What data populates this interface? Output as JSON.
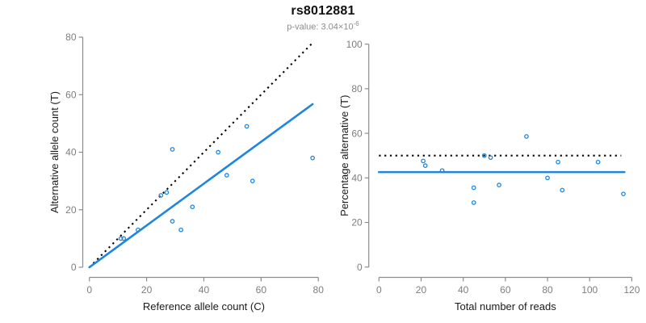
{
  "header": {
    "title": "rs8012881",
    "subtitle_main": "p-value: 3.04×10",
    "subtitle_exponent": "-6"
  },
  "colors": {
    "accent_blue": "#1E87DD",
    "line_black": "#000000",
    "axis_gray": "#8C8C8C",
    "tick_text_gray": "#7E7E7E",
    "label_dark": "#1A1A1A",
    "title_black": "#111111",
    "subtitle_gray": "#8C8C8C"
  },
  "chart_data": [
    {
      "name": "ref-vs-alt-counts",
      "type": "scatter",
      "title": "",
      "xlabel": "Reference allele count (C)",
      "ylabel": "Alternative allele count (T)",
      "xlim": [
        0,
        80
      ],
      "ylim": [
        0,
        80
      ],
      "xticks": [
        0,
        20,
        40,
        60,
        80
      ],
      "yticks": [
        0,
        20,
        40,
        60,
        80
      ],
      "grid": false,
      "legend": null,
      "points": [
        [
          11,
          10
        ],
        [
          12,
          10
        ],
        [
          17,
          13
        ],
        [
          25,
          25
        ],
        [
          27,
          26
        ],
        [
          29,
          16
        ],
        [
          29,
          41
        ],
        [
          32,
          13
        ],
        [
          36,
          21
        ],
        [
          45,
          40
        ],
        [
          48,
          32
        ],
        [
          55,
          49
        ],
        [
          57,
          30
        ],
        [
          78,
          38
        ]
      ],
      "lines": [
        {
          "name": "identity-line",
          "style": "dotted",
          "color": "#000000",
          "x": [
            0,
            78
          ],
          "y": [
            0,
            78
          ]
        },
        {
          "name": "fit-line",
          "style": "solid",
          "color": "#1E87DD",
          "x": [
            0,
            78
          ],
          "y": [
            0,
            56.7
          ]
        }
      ]
    },
    {
      "name": "reads-vs-percentage",
      "type": "scatter",
      "title": "",
      "xlabel": "Total number of reads",
      "ylabel": "Percentage alternative (T)",
      "xlim": [
        0,
        120
      ],
      "ylim": [
        0,
        100
      ],
      "xticks": [
        0,
        20,
        40,
        60,
        80,
        100,
        120
      ],
      "yticks": [
        0,
        20,
        40,
        60,
        80,
        100
      ],
      "grid": false,
      "legend": null,
      "points": [
        [
          21,
          47.6
        ],
        [
          22,
          45.5
        ],
        [
          30,
          43.3
        ],
        [
          45,
          28.9
        ],
        [
          45,
          35.6
        ],
        [
          50,
          50.0
        ],
        [
          53,
          49.1
        ],
        [
          57,
          36.8
        ],
        [
          70,
          58.6
        ],
        [
          80,
          40.0
        ],
        [
          85,
          47.1
        ],
        [
          87,
          34.5
        ],
        [
          104,
          47.1
        ],
        [
          116,
          32.8
        ]
      ],
      "lines": [
        {
          "name": "expected-50-line",
          "style": "dotted",
          "color": "#000000",
          "x": [
            0,
            115
          ],
          "y": [
            50,
            50
          ]
        },
        {
          "name": "mean-percentage-line",
          "style": "solid",
          "color": "#1E87DD",
          "x": [
            0,
            116.5
          ],
          "y": [
            42.6,
            42.6
          ]
        }
      ]
    }
  ]
}
